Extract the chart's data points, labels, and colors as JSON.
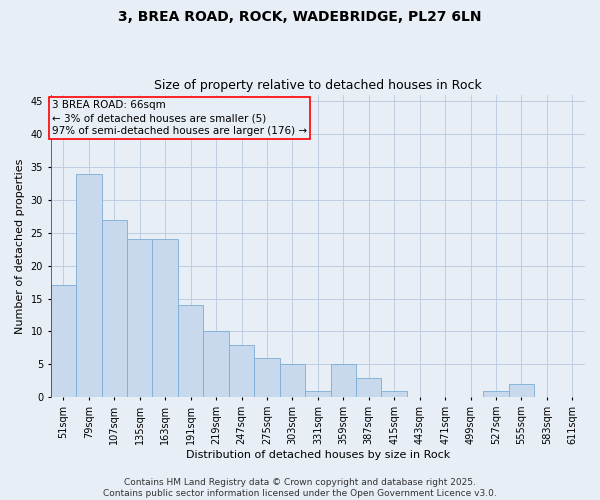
{
  "title1": "3, BREA ROAD, ROCK, WADEBRIDGE, PL27 6LN",
  "title2": "Size of property relative to detached houses in Rock",
  "xlabel": "Distribution of detached houses by size in Rock",
  "ylabel": "Number of detached properties",
  "categories": [
    "51sqm",
    "79sqm",
    "107sqm",
    "135sqm",
    "163sqm",
    "191sqm",
    "219sqm",
    "247sqm",
    "275sqm",
    "303sqm",
    "331sqm",
    "359sqm",
    "387sqm",
    "415sqm",
    "443sqm",
    "471sqm",
    "499sqm",
    "527sqm",
    "555sqm",
    "583sqm",
    "611sqm"
  ],
  "values": [
    17,
    34,
    27,
    24,
    24,
    14,
    10,
    8,
    6,
    5,
    1,
    5,
    3,
    1,
    0,
    0,
    0,
    1,
    2,
    0,
    0
  ],
  "bar_color": "#c8d9ee",
  "bar_edge_color": "#7aadd4",
  "grid_color": "#b8c8dc",
  "bg_color": "#e8eef6",
  "annotation_line1": "3 BREA ROAD: 66sqm",
  "annotation_line2": "← 3% of detached houses are smaller (5)",
  "annotation_line3": "97% of semi-detached houses are larger (176) →",
  "ylim": [
    0,
    46
  ],
  "yticks": [
    0,
    5,
    10,
    15,
    20,
    25,
    30,
    35,
    40,
    45
  ],
  "footer_line1": "Contains HM Land Registry data © Crown copyright and database right 2025.",
  "footer_line2": "Contains public sector information licensed under the Open Government Licence v3.0.",
  "title1_fontsize": 10,
  "title2_fontsize": 9,
  "axis_label_fontsize": 8,
  "tick_fontsize": 7,
  "annotation_fontsize": 7.5,
  "footer_fontsize": 6.5
}
